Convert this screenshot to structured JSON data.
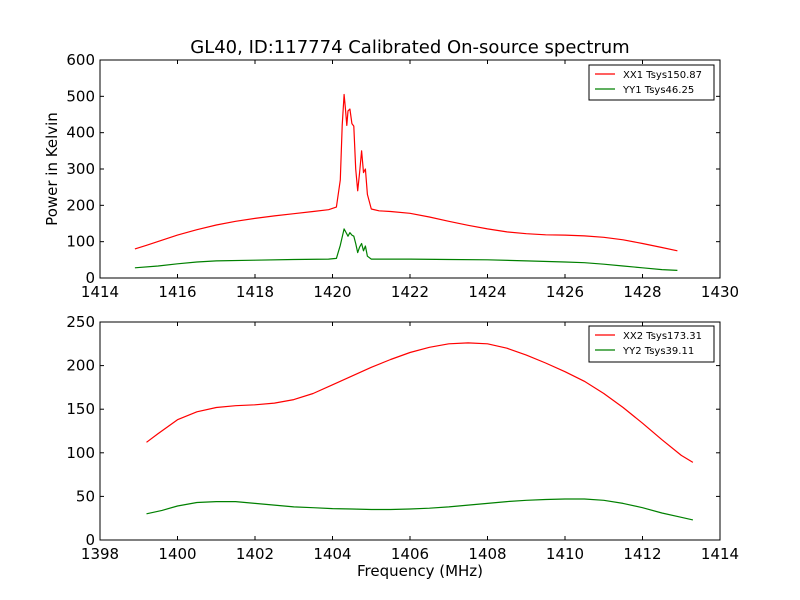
{
  "figure_title": "GL40, ID:117774 Calibrated On-source spectrum",
  "chart_data": [
    {
      "type": "line",
      "title": "GL40, ID:117774 Calibrated On-source spectrum",
      "xlabel": "",
      "ylabel": "Power in Kelvin",
      "xlim": [
        1414,
        1430
      ],
      "ylim": [
        0,
        600
      ],
      "xticks": [
        1414,
        1416,
        1418,
        1420,
        1422,
        1424,
        1426,
        1428,
        1430
      ],
      "yticks": [
        0,
        100,
        200,
        300,
        400,
        500,
        600
      ],
      "grid": false,
      "legend": "top-right",
      "series": [
        {
          "name": "XX1 Tsys150.87",
          "color": "#ff0000",
          "x": [
            1414.9,
            1415.2,
            1415.6,
            1416.0,
            1416.5,
            1417.0,
            1417.5,
            1418.0,
            1418.5,
            1419.0,
            1419.5,
            1419.9,
            1420.1,
            1420.2,
            1420.25,
            1420.3,
            1420.33,
            1420.37,
            1420.4,
            1420.45,
            1420.5,
            1420.55,
            1420.6,
            1420.65,
            1420.7,
            1420.75,
            1420.8,
            1420.85,
            1420.9,
            1421.0,
            1421.2,
            1421.5,
            1422.0,
            1422.5,
            1423.0,
            1423.5,
            1424.0,
            1424.5,
            1425.0,
            1425.5,
            1426.0,
            1426.5,
            1427.0,
            1427.5,
            1428.0,
            1428.5,
            1428.9
          ],
          "values": [
            80,
            90,
            104,
            118,
            133,
            146,
            156,
            164,
            171,
            177,
            183,
            188,
            195,
            270,
            420,
            505,
            470,
            420,
            460,
            465,
            425,
            418,
            300,
            240,
            290,
            350,
            290,
            300,
            230,
            190,
            185,
            183,
            178,
            168,
            156,
            145,
            135,
            127,
            122,
            119,
            118,
            116,
            112,
            105,
            95,
            84,
            75
          ]
        },
        {
          "name": "YY1 Tsys46.25",
          "color": "#008000",
          "x": [
            1414.9,
            1415.5,
            1416.0,
            1416.5,
            1417.0,
            1418.0,
            1419.0,
            1419.9,
            1420.1,
            1420.2,
            1420.3,
            1420.35,
            1420.4,
            1420.45,
            1420.5,
            1420.55,
            1420.6,
            1420.65,
            1420.7,
            1420.75,
            1420.8,
            1420.85,
            1420.9,
            1421.0,
            1421.5,
            1422.0,
            1423.0,
            1424.0,
            1425.0,
            1426.0,
            1426.5,
            1427.0,
            1427.5,
            1428.0,
            1428.5,
            1428.9
          ],
          "values": [
            28,
            33,
            39,
            44,
            47,
            49,
            51,
            52,
            54,
            90,
            135,
            125,
            115,
            125,
            118,
            115,
            95,
            70,
            85,
            95,
            75,
            88,
            60,
            52,
            52,
            52,
            51,
            50,
            47,
            44,
            42,
            38,
            33,
            28,
            23,
            21
          ]
        }
      ]
    },
    {
      "type": "line",
      "title": "",
      "xlabel": "Frequency (MHz)",
      "ylabel": "",
      "xlim": [
        1398,
        1414
      ],
      "ylim": [
        0,
        250
      ],
      "xticks": [
        1398,
        1400,
        1402,
        1404,
        1406,
        1408,
        1410,
        1412,
        1414
      ],
      "yticks": [
        0,
        50,
        100,
        150,
        200,
        250
      ],
      "grid": false,
      "legend": "top-right",
      "series": [
        {
          "name": "XX2 Tsys173.31",
          "color": "#ff0000",
          "x": [
            1399.2,
            1399.5,
            1400.0,
            1400.5,
            1401.0,
            1401.5,
            1402.0,
            1402.5,
            1403.0,
            1403.5,
            1404.0,
            1404.5,
            1405.0,
            1405.5,
            1406.0,
            1406.5,
            1407.0,
            1407.5,
            1408.0,
            1408.5,
            1409.0,
            1409.5,
            1410.0,
            1410.5,
            1411.0,
            1411.5,
            1412.0,
            1412.5,
            1413.0,
            1413.3
          ],
          "values": [
            112,
            122,
            138,
            147,
            152,
            154,
            155,
            157,
            161,
            168,
            178,
            188,
            198,
            207,
            215,
            221,
            225,
            226,
            225,
            220,
            212,
            203,
            193,
            182,
            168,
            152,
            134,
            115,
            97,
            89
          ]
        },
        {
          "name": "YY2 Tsys39.11",
          "color": "#008000",
          "x": [
            1399.2,
            1399.6,
            1400.0,
            1400.5,
            1401.0,
            1401.5,
            1402.0,
            1402.5,
            1403.0,
            1403.5,
            1404.0,
            1404.5,
            1405.0,
            1405.5,
            1406.0,
            1406.5,
            1407.0,
            1407.5,
            1408.0,
            1408.5,
            1409.0,
            1409.5,
            1410.0,
            1410.5,
            1411.0,
            1411.5,
            1412.0,
            1412.5,
            1413.0,
            1413.3
          ],
          "values": [
            30,
            34,
            39,
            43,
            44,
            44,
            42,
            40,
            38,
            37,
            36,
            35.5,
            35,
            35,
            35.5,
            36.5,
            38,
            40,
            42,
            44,
            45.5,
            46.5,
            47,
            47,
            45.5,
            42,
            37,
            31,
            26,
            23
          ]
        }
      ]
    }
  ]
}
